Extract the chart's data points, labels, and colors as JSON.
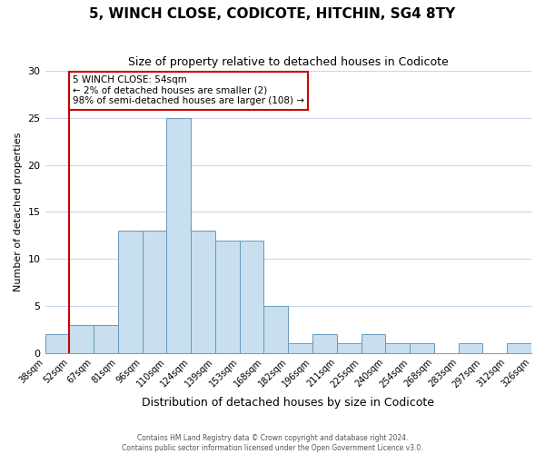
{
  "title": "5, WINCH CLOSE, CODICOTE, HITCHIN, SG4 8TY",
  "subtitle": "Size of property relative to detached houses in Codicote",
  "xlabel": "Distribution of detached houses by size in Codicote",
  "ylabel": "Number of detached properties",
  "bin_labels": [
    "38sqm",
    "52sqm",
    "67sqm",
    "81sqm",
    "96sqm",
    "110sqm",
    "124sqm",
    "139sqm",
    "153sqm",
    "168sqm",
    "182sqm",
    "196sqm",
    "211sqm",
    "225sqm",
    "240sqm",
    "254sqm",
    "268sqm",
    "283sqm",
    "297sqm",
    "312sqm",
    "326sqm"
  ],
  "bar_heights": [
    2,
    3,
    3,
    13,
    13,
    25,
    13,
    12,
    12,
    5,
    1,
    2,
    1,
    2,
    1,
    1,
    0,
    1,
    0,
    1
  ],
  "bar_color": "#c8dff0",
  "bar_edge_color": "#6699bb",
  "ylim": [
    0,
    30
  ],
  "yticks": [
    0,
    5,
    10,
    15,
    20,
    25,
    30
  ],
  "vline_x_index": 1,
  "vline_color": "#cc0000",
  "annotation_title": "5 WINCH CLOSE: 54sqm",
  "annotation_line1": "← 2% of detached houses are smaller (2)",
  "annotation_line2": "98% of semi-detached houses are larger (108) →",
  "annotation_box_color": "#ffffff",
  "annotation_box_edge": "#cc0000",
  "footer1": "Contains HM Land Registry data © Crown copyright and database right 2024.",
  "footer2": "Contains public sector information licensed under the Open Government Licence v3.0.",
  "background_color": "#ffffff",
  "grid_color": "#c8d8e8"
}
